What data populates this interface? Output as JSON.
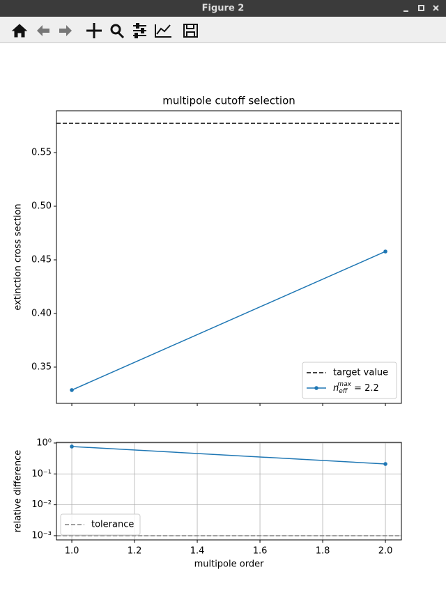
{
  "window": {
    "title": "Figure 2"
  },
  "chart_data": [
    {
      "type": "line",
      "title": "multipole cutoff selection",
      "y_label": "extinction cross section",
      "x": [
        1,
        2
      ],
      "series": [
        {
          "name": "n_eff^max = 2.2",
          "color": "#1f77b4",
          "values": [
            0.3286,
            0.4578
          ]
        }
      ],
      "reference_lines": [
        {
          "name": "target value",
          "value": 0.5773,
          "color": "#000000",
          "style": "dashed"
        }
      ],
      "xlim": [
        0.951,
        2.051
      ],
      "ylim": [
        0.3162,
        0.589
      ],
      "xticks": [
        1,
        1.2,
        1.4,
        1.6,
        1.8,
        2
      ],
      "show_xtick_labels": false,
      "yticks": [
        0.35,
        {
          "value": 0.4,
          "label": "0.40"
        },
        0.45,
        {
          "value": 0.5,
          "label": "0.50"
        },
        0.55
      ],
      "grid": false,
      "legend": "lower right"
    },
    {
      "type": "line",
      "x_label": "multipole order",
      "y_label": "relative difference",
      "y_scale": "log",
      "x": [
        1,
        2
      ],
      "series": [
        {
          "color": "#1f77b4",
          "values": [
            0.77,
            0.21
          ]
        }
      ],
      "reference_lines": [
        {
          "name": "tolerance",
          "value": 0.001,
          "color": "#808080",
          "style": "dashed"
        }
      ],
      "xlim": [
        0.951,
        2.051
      ],
      "ylim": [
        0.00073,
        1.05
      ],
      "xticks": [
        {
          "value": 1,
          "label": "1.0"
        },
        1.2,
        1.4,
        1.6,
        1.8,
        {
          "value": 2,
          "label": "2.0"
        }
      ],
      "show_xtick_labels": true,
      "yticks": [
        {
          "value": 1,
          "label": "10⁰"
        },
        {
          "value": 0.1,
          "label": "10⁻¹"
        },
        {
          "value": 0.01,
          "label": "10⁻²"
        },
        {
          "value": 0.001,
          "label": "10⁻³"
        }
      ],
      "grid": true,
      "legend": "lower left"
    }
  ]
}
